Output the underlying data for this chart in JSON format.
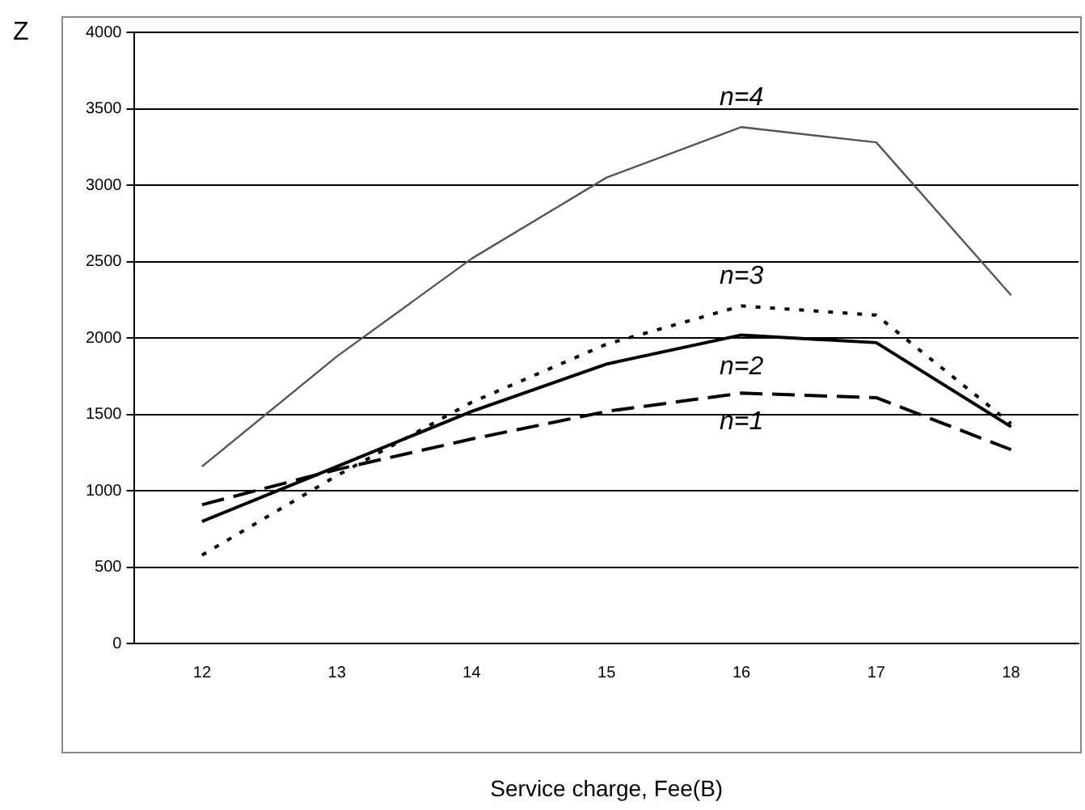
{
  "chart_data": {
    "type": "line",
    "xlabel": "Service charge, Fee(B)",
    "ylabel": "Z",
    "categories": [
      "12",
      "13",
      "14",
      "15",
      "16",
      "17",
      "18"
    ],
    "series": [
      {
        "name": "n=4",
        "color": "#555555",
        "line_style": "solid",
        "values": [
          1160,
          1880,
          2520,
          3050,
          3380,
          3280,
          2280
        ]
      },
      {
        "name": "n=3",
        "color": "#000000",
        "line_style": "dotted",
        "values": [
          580,
          1100,
          1580,
          1960,
          2210,
          2150,
          1440
        ]
      },
      {
        "name": "n=2",
        "color": "#000000",
        "line_style": "solid",
        "values": [
          800,
          1160,
          1520,
          1830,
          2020,
          1970,
          1420
        ]
      },
      {
        "name": "n=1",
        "color": "#000000",
        "line_style": "dashed",
        "values": [
          910,
          1140,
          1340,
          1520,
          1640,
          1610,
          1270
        ]
      }
    ],
    "ylim": [
      0,
      4000
    ],
    "yticks": [
      0,
      500,
      1000,
      1500,
      2000,
      2500,
      3000,
      3500,
      4000
    ],
    "grid": "y",
    "legend": false,
    "marker": "none"
  }
}
